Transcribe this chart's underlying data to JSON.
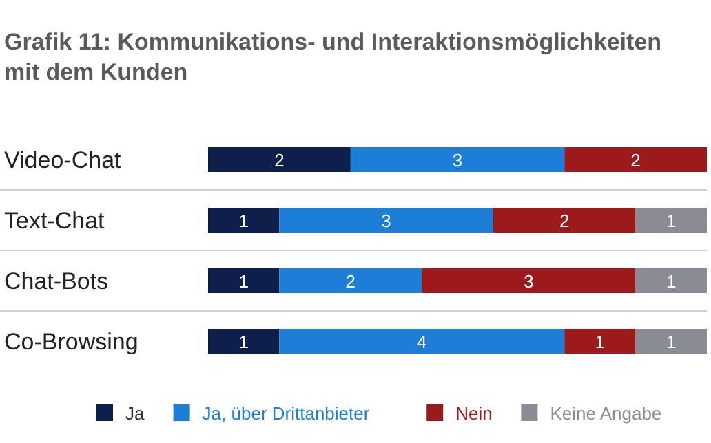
{
  "chart_data": {
    "type": "bar",
    "orientation": "horizontal",
    "stacked": true,
    "title": "Grafik 11:  Kommunikations- und Interaktionsmöglichkeiten mit dem Kunden",
    "categories": [
      "Video-Chat",
      "Text-Chat",
      "Chat-Bots",
      "Co-Browsing"
    ],
    "series": [
      {
        "name": "Ja",
        "color": "#0f1f4b",
        "values": [
          2,
          1,
          1,
          1
        ]
      },
      {
        "name": "Ja, über Drittanbieter",
        "color": "#1c7ed6",
        "values": [
          3,
          3,
          2,
          4
        ]
      },
      {
        "name": "Nein",
        "color": "#9c1a1c",
        "values": [
          2,
          2,
          3,
          1
        ]
      },
      {
        "name": "Keine Angabe",
        "color": "#898c92",
        "values": [
          null,
          1,
          1,
          1
        ]
      }
    ],
    "xlim": [
      0,
      7
    ],
    "data_labels": true,
    "legend": "bottom"
  }
}
